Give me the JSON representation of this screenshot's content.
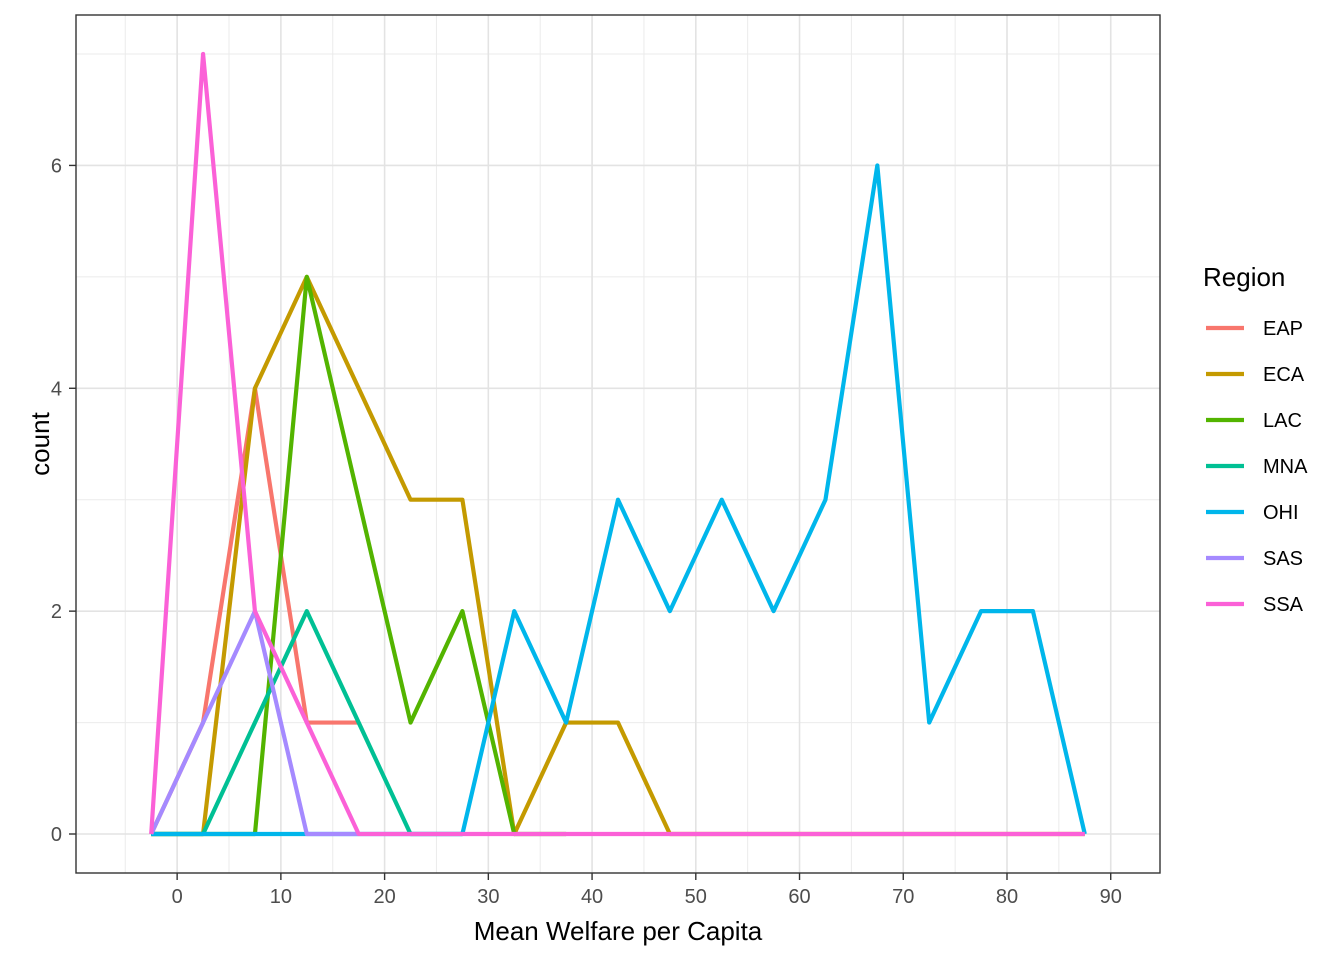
{
  "chart_data": {
    "type": "line",
    "xlabel": "Mean Welfare per Capita",
    "ylabel": "count",
    "xlim": [
      -9.75,
      94.75
    ],
    "ylim": [
      -0.35,
      7.35
    ],
    "x_ticks": [
      0,
      10,
      20,
      30,
      40,
      50,
      60,
      70,
      80,
      90
    ],
    "y_ticks": [
      0,
      2,
      4,
      6
    ],
    "grid": true,
    "legend": {
      "title": "Region",
      "position": "right"
    },
    "x": [
      -2.5,
      2.5,
      7.5,
      12.5,
      17.5,
      22.5,
      27.5,
      32.5,
      37.5,
      42.5,
      47.5,
      52.5,
      57.5,
      62.5,
      67.5,
      72.5,
      77.5,
      82.5,
      87.5
    ],
    "series": [
      {
        "name": "EAP",
        "color": "#F8766D",
        "x": [
          -2.5,
          2.5,
          7.5,
          12.5,
          17.5
        ],
        "values": [
          0,
          1,
          4,
          1,
          1
        ]
      },
      {
        "name": "ECA",
        "color": "#C49A00",
        "x": [
          -2.5,
          2.5,
          7.5,
          12.5,
          17.5,
          22.5,
          27.5,
          32.5,
          37.5,
          42.5,
          47.5,
          52.5,
          57.5,
          62.5,
          67.5,
          72.5,
          77.5,
          82.5,
          87.5
        ],
        "values": [
          0,
          0,
          4,
          5,
          4,
          3,
          3,
          0,
          1,
          1,
          0,
          0,
          0,
          0,
          0,
          0,
          0,
          0,
          0
        ]
      },
      {
        "name": "LAC",
        "color": "#53B400",
        "x": [
          -2.5,
          2.5,
          7.5,
          12.5,
          17.5,
          22.5,
          27.5,
          32.5,
          37.5
        ],
        "values": [
          0,
          0,
          0,
          5,
          3,
          1,
          2,
          0,
          0
        ]
      },
      {
        "name": "MNA",
        "color": "#00C094",
        "x": [
          -2.5,
          2.5,
          7.5,
          12.5,
          17.5,
          22.5,
          27.5
        ],
        "values": [
          0,
          0,
          1,
          2,
          1,
          0,
          0
        ]
      },
      {
        "name": "OHI",
        "color": "#00B6EB",
        "x": [
          -2.5,
          2.5,
          7.5,
          12.5,
          17.5,
          22.5,
          27.5,
          32.5,
          37.5,
          42.5,
          47.5,
          52.5,
          57.5,
          62.5,
          67.5,
          72.5,
          77.5,
          82.5,
          87.5
        ],
        "values": [
          0,
          0,
          0,
          0,
          0,
          0,
          0,
          2,
          1,
          3,
          2,
          3,
          2,
          3,
          6,
          1,
          2,
          2,
          0
        ]
      },
      {
        "name": "SAS",
        "color": "#A58AFF",
        "x": [
          -2.5,
          2.5,
          7.5,
          12.5,
          17.5
        ],
        "values": [
          0,
          1,
          2,
          0,
          0
        ]
      },
      {
        "name": "SSA",
        "color": "#FB61D7",
        "x": [
          -2.5,
          2.5,
          7.5,
          12.5,
          17.5,
          22.5,
          27.5,
          32.5,
          37.5,
          42.5,
          47.5,
          52.5,
          57.5,
          62.5,
          67.5,
          72.5,
          77.5,
          82.5,
          87.5
        ],
        "values": [
          0,
          7,
          2,
          1,
          0,
          0,
          0,
          0,
          0,
          0,
          0,
          0,
          0,
          0,
          0,
          0,
          0,
          0,
          0
        ]
      }
    ]
  }
}
